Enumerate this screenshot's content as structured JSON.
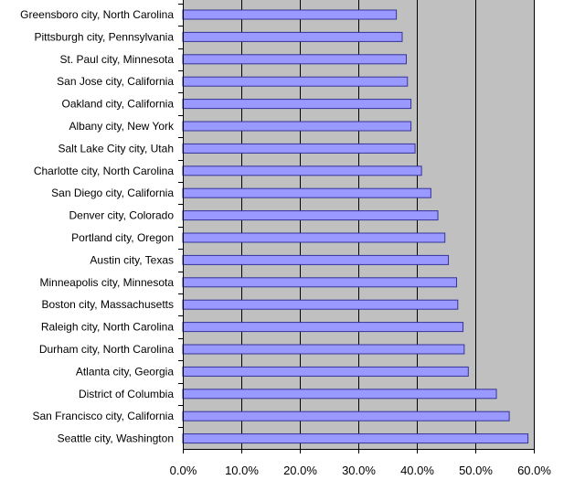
{
  "chart_data": {
    "type": "bar",
    "orientation": "horizontal",
    "categories": [
      "Greensboro city, North Carolina",
      "Pittsburgh city, Pennsylvania",
      "St. Paul city, Minnesota",
      "San Jose city, California",
      "Oakland city, California",
      "Albany city, New York",
      "Salt Lake City city, Utah",
      "Charlotte city, North Carolina",
      "San Diego city, California",
      "Denver city, Colorado",
      "Portland city, Oregon",
      "Austin city, Texas",
      "Minneapolis city, Minnesota",
      "Boston city, Massachusetts",
      "Raleigh city, North Carolina",
      "Durham city, North Carolina",
      "Atlanta city, Georgia",
      "District of Columbia",
      "San Francisco city, California",
      "Seattle city, Washington"
    ],
    "values": [
      36.5,
      37.5,
      38.2,
      38.4,
      39.0,
      39.0,
      39.7,
      40.8,
      42.4,
      43.6,
      44.8,
      45.4,
      46.8,
      47.0,
      47.9,
      48.1,
      48.8,
      53.6,
      55.8,
      59.0
    ],
    "xlim": [
      0,
      60
    ],
    "xticks": [
      "0.0%",
      "10.0%",
      "20.0%",
      "30.0%",
      "40.0%",
      "50.0%",
      "60.0%"
    ],
    "title": "",
    "xlabel": "",
    "ylabel": "",
    "grid": "vertical",
    "legend": "none",
    "colors": {
      "bar_fill": "#9999ff",
      "bar_stroke": "#333399",
      "plot_background": "#c0c0c0",
      "gridline": "#000000"
    }
  }
}
